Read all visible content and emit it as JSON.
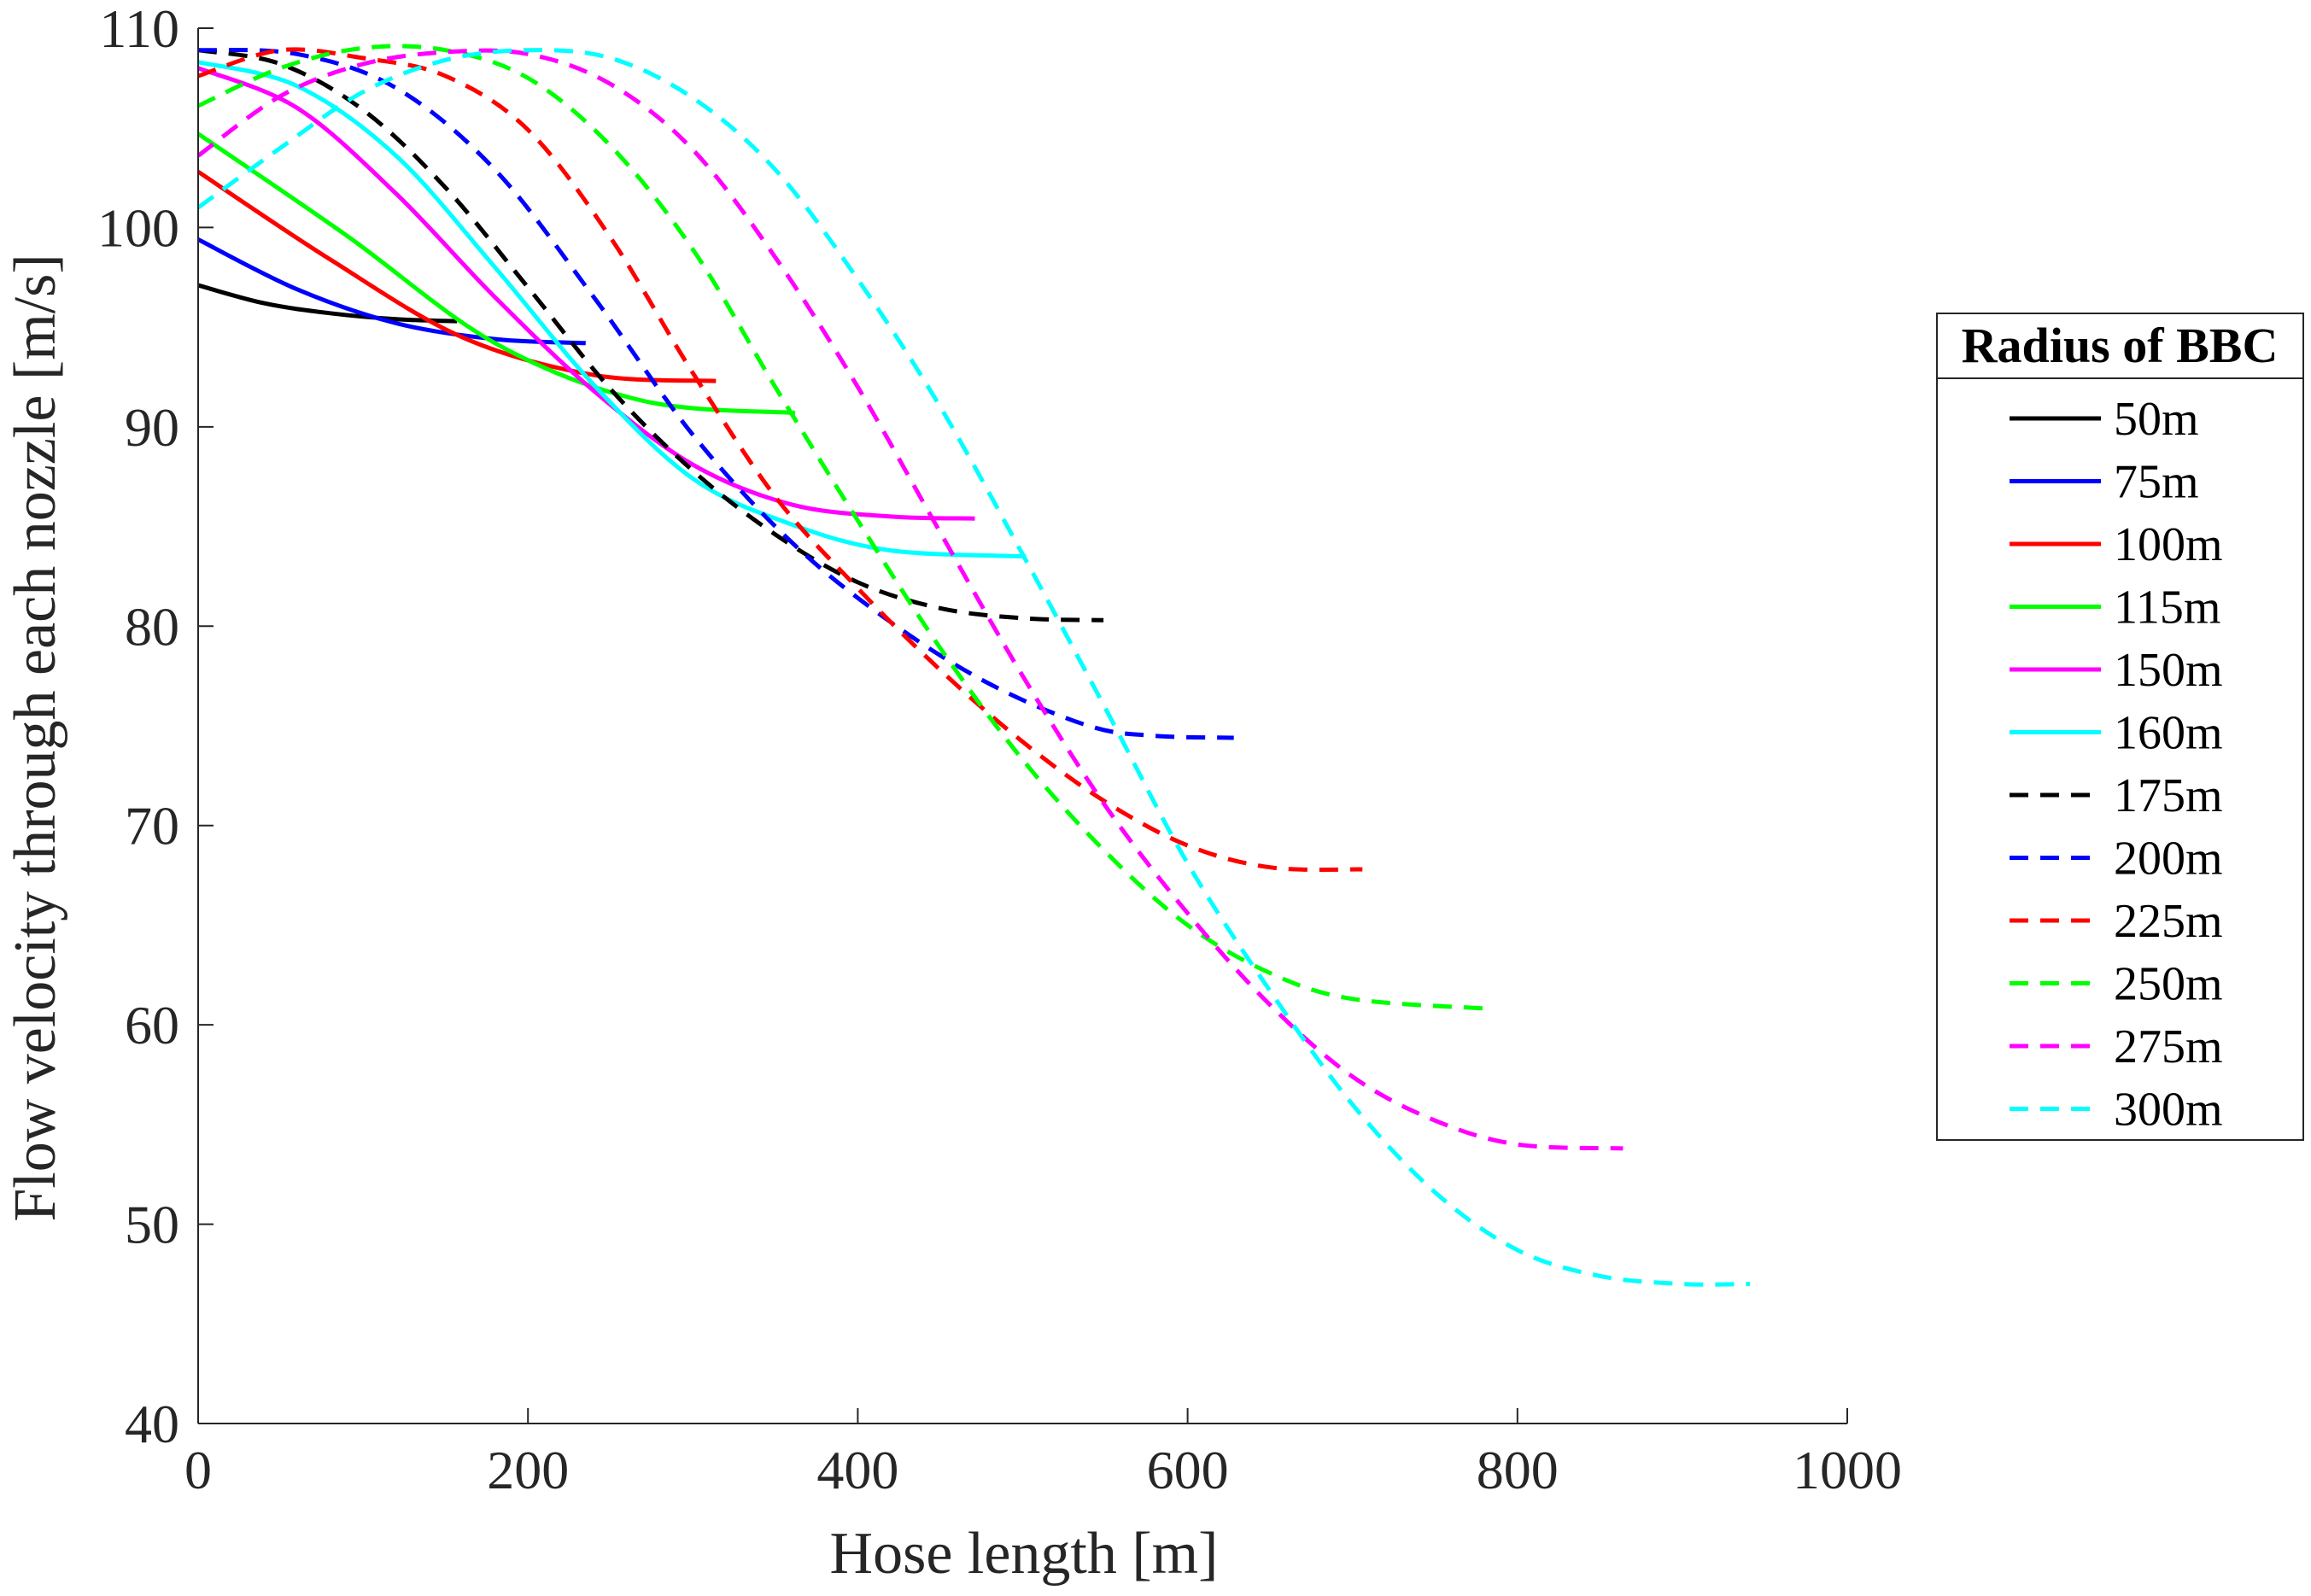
{
  "chart_data": {
    "type": "line",
    "xlabel": "Hose length [m]",
    "ylabel": "Flow velocity through each nozzle [m/s]",
    "xlim": [
      0,
      1000
    ],
    "ylim": [
      40,
      110
    ],
    "xticks": [
      0,
      200,
      400,
      600,
      800,
      1000
    ],
    "yticks": [
      40,
      50,
      60,
      70,
      80,
      90,
      100,
      110
    ],
    "grid": false,
    "legend": {
      "title": "Radius of BBC",
      "placement": "outside-right"
    },
    "series": [
      {
        "name": "50m",
        "color": "#000000",
        "style": "solid",
        "x": [
          0,
          40,
          80,
          120,
          157
        ],
        "y": [
          97.1,
          96.2,
          95.7,
          95.4,
          95.3
        ]
      },
      {
        "name": "75m",
        "color": "#0000ff",
        "style": "solid",
        "x": [
          0,
          60,
          120,
          180,
          235
        ],
        "y": [
          99.4,
          96.9,
          95.2,
          94.4,
          94.2
        ]
      },
      {
        "name": "100m",
        "color": "#ff0000",
        "style": "solid",
        "x": [
          0,
          80,
          160,
          240,
          314
        ],
        "y": [
          102.8,
          98.4,
          94.5,
          92.6,
          92.3
        ]
      },
      {
        "name": "115m",
        "color": "#00ff00",
        "style": "solid",
        "x": [
          0,
          90,
          180,
          270,
          362
        ],
        "y": [
          104.7,
          99.6,
          94.2,
          91.3,
          90.7
        ]
      },
      {
        "name": "150m",
        "color": "#ff00ff",
        "style": "solid",
        "x": [
          0,
          60,
          120,
          180,
          240,
          300,
          360,
          420,
          471
        ],
        "y": [
          108.0,
          106.0,
          101.7,
          96.5,
          91.8,
          88.1,
          86.1,
          85.5,
          85.4
        ]
      },
      {
        "name": "160m",
        "color": "#00ffff",
        "style": "solid",
        "x": [
          0,
          60,
          120,
          180,
          240,
          300,
          360,
          420,
          502
        ],
        "y": [
          108.3,
          107.1,
          103.6,
          98.0,
          92.1,
          87.4,
          85.1,
          83.8,
          83.5
        ]
      },
      {
        "name": "175m",
        "color": "#000000",
        "style": "dashed",
        "x": [
          0,
          50,
          100,
          150,
          200,
          250,
          300,
          350,
          400,
          450,
          500,
          549
        ],
        "y": [
          108.9,
          108.2,
          105.9,
          102.0,
          97.0,
          91.9,
          87.8,
          84.6,
          82.2,
          80.9,
          80.4,
          80.3
        ]
      },
      {
        "name": "200m",
        "color": "#0000ff",
        "style": "dashed",
        "x": [
          0,
          60,
          120,
          180,
          240,
          300,
          360,
          420,
          480,
          540,
          580,
          628
        ],
        "y": [
          108.9,
          108.7,
          107.0,
          102.9,
          96.5,
          89.6,
          84.2,
          80.2,
          77.1,
          75.0,
          74.5,
          74.4
        ]
      },
      {
        "name": "225m",
        "color": "#ff0000",
        "style": "dashed",
        "x": [
          0,
          50,
          100,
          150,
          200,
          250,
          300,
          350,
          400,
          450,
          500,
          550,
          600,
          650,
          706
        ],
        "y": [
          107.6,
          108.9,
          108.5,
          107.6,
          104.9,
          99.5,
          92.7,
          86.5,
          81.9,
          77.8,
          74.2,
          71.2,
          69.0,
          67.9,
          67.8
        ]
      },
      {
        "name": "250m",
        "color": "#00ff00",
        "style": "dashed",
        "x": [
          0,
          50,
          100,
          150,
          200,
          250,
          300,
          350,
          400,
          450,
          500,
          550,
          600,
          650,
          700,
          785
        ],
        "y": [
          106.1,
          108.0,
          109.0,
          108.9,
          107.5,
          104.1,
          98.9,
          92.0,
          85.3,
          78.9,
          73.3,
          68.7,
          65.0,
          62.6,
          61.3,
          60.8
        ]
      },
      {
        "name": "275m",
        "color": "#ff00ff",
        "style": "dashed",
        "x": [
          0,
          50,
          100,
          150,
          200,
          250,
          300,
          350,
          400,
          450,
          500,
          550,
          600,
          650,
          700,
          750,
          800,
          864
        ],
        "y": [
          103.6,
          106.6,
          108.2,
          108.8,
          108.7,
          107.2,
          103.9,
          98.5,
          92.0,
          84.7,
          77.5,
          71.0,
          65.6,
          61.0,
          57.4,
          55.2,
          54.0,
          53.8
        ]
      },
      {
        "name": "300m",
        "color": "#00ffff",
        "style": "dashed",
        "x": [
          0,
          50,
          100,
          150,
          200,
          250,
          300,
          350,
          400,
          450,
          500,
          550,
          600,
          650,
          700,
          750,
          800,
          850,
          900,
          941
        ],
        "y": [
          101.0,
          104.0,
          106.8,
          108.4,
          108.9,
          108.5,
          106.5,
          102.9,
          97.4,
          91.0,
          83.6,
          75.9,
          68.1,
          61.7,
          56.0,
          51.6,
          48.7,
          47.4,
          47.0,
          47.0
        ]
      }
    ]
  }
}
